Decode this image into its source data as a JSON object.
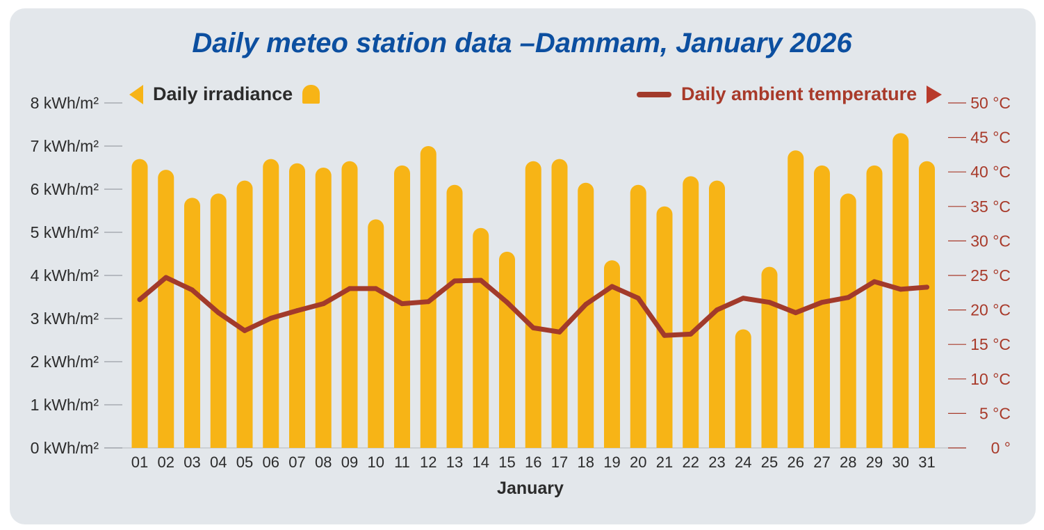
{
  "chart_data": {
    "type": "bar+line",
    "title": "Daily meteo station data –Dammam, January 2026",
    "xlabel": "January",
    "categories": [
      "01",
      "02",
      "03",
      "04",
      "05",
      "06",
      "07",
      "08",
      "09",
      "10",
      "11",
      "12",
      "13",
      "14",
      "15",
      "16",
      "17",
      "18",
      "19",
      "20",
      "21",
      "22",
      "23",
      "24",
      "25",
      "26",
      "27",
      "28",
      "29",
      "30",
      "31"
    ],
    "series": [
      {
        "name": "Daily irradiance",
        "axis": "left",
        "type": "bar",
        "color": "#f7b416",
        "values": [
          6.7,
          6.45,
          5.8,
          5.9,
          6.2,
          6.7,
          6.6,
          6.5,
          6.65,
          5.3,
          6.55,
          7.0,
          6.1,
          5.1,
          4.55,
          6.65,
          6.7,
          6.15,
          4.35,
          6.1,
          5.6,
          6.3,
          6.2,
          2.75,
          4.2,
          6.9,
          6.55,
          5.9,
          6.55,
          7.3,
          6.65
        ]
      },
      {
        "name": "Daily ambient temperature",
        "axis": "right",
        "type": "line",
        "color": "#a23a2b",
        "values": [
          21.5,
          24.7,
          22.9,
          19.6,
          17.0,
          18.8,
          19.9,
          20.9,
          23.1,
          23.1,
          20.9,
          21.2,
          24.2,
          24.3,
          21.1,
          17.4,
          16.8,
          20.8,
          23.4,
          21.7,
          16.3,
          16.5,
          20.0,
          21.7,
          21.1,
          19.6,
          21.1,
          21.8,
          24.1,
          23.0,
          23.3
        ]
      }
    ],
    "y_left": {
      "lim": [
        0,
        8
      ],
      "ticks": [
        "0 kWh/m²",
        "1 kWh/m²",
        "2 kWh/m²",
        "3 kWh/m²",
        "4 kWh/m²",
        "5 kWh/m²",
        "6 kWh/m²",
        "7 kWh/m²",
        "8 kWh/m²"
      ]
    },
    "y_right": {
      "lim": [
        0,
        50
      ],
      "ticks": [
        "0 °",
        "5 °C",
        "10 °C",
        "15 °C",
        "20 °C",
        "25 °C",
        "30 °C",
        "35 °C",
        "40 °C",
        "45 °C",
        "50 °C"
      ]
    },
    "legend": {
      "irradiance_label": "Daily irradiance",
      "temperature_label": "Daily ambient temperature"
    },
    "colors": {
      "title": "#0c4fa0",
      "bar": "#f7b416",
      "line": "#a23a2b",
      "right_axis_text": "#a83a2a",
      "left_axis_text": "#2b2b2b"
    }
  }
}
